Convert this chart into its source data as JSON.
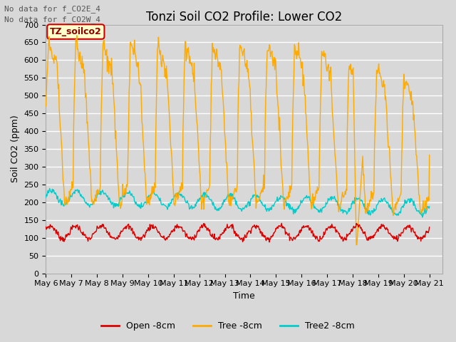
{
  "title": "Tonzi Soil CO2 Profile: Lower CO2",
  "xlabel": "Time",
  "ylabel": "Soil CO2 (ppm)",
  "annotations": [
    "No data for f_CO2E_4",
    "No data for f_CO2W_4"
  ],
  "legend_label": "TZ_soilco2",
  "legend_entries": [
    "Open -8cm",
    "Tree -8cm",
    "Tree2 -8cm"
  ],
  "line_colors": [
    "#dd0000",
    "#ffaa00",
    "#00cccc"
  ],
  "ylim": [
    0,
    700
  ],
  "x_tick_labels": [
    "May 6",
    "May 7",
    "May 8",
    "May 9",
    "May 10",
    "May 11",
    "May 12",
    "May 13",
    "May 14",
    "May 15",
    "May 16",
    "May 17",
    "May 18",
    "May 19",
    "May 20",
    "May 21"
  ],
  "background_color": "#d8d8d8",
  "plot_bg_color": "#d8d8d8",
  "grid_color": "#ffffff",
  "title_fontsize": 12,
  "axis_fontsize": 9,
  "tick_fontsize": 8
}
